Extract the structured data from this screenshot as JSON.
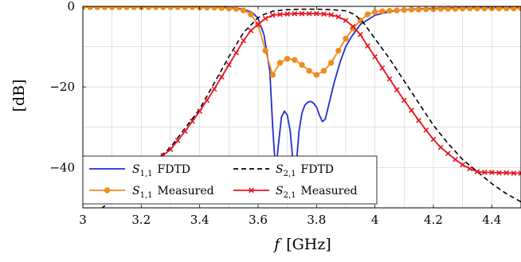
{
  "chart_data": {
    "type": "line",
    "title": "",
    "xlabel": "f",
    "xunit": "[GHz]",
    "ylabel": "[dB]",
    "xlim": [
      3,
      4.5
    ],
    "ylim": [
      -50,
      0
    ],
    "grid": true,
    "legend_position": "bottom-left",
    "xticks": [
      3,
      3.2,
      3.4,
      3.6,
      3.8,
      4,
      4.2,
      4.4
    ],
    "yticks": [
      0,
      -20,
      -40
    ],
    "xtick_labels": [
      "3",
      "3.2",
      "3.4",
      "3.6",
      "3.8",
      "4",
      "4.2",
      "4.4"
    ],
    "ytick_labels": [
      "0",
      "−20",
      "−40"
    ],
    "series": [
      {
        "name": "S_{1,1} FDTD",
        "legend_main": "S",
        "legend_sub": "1,1",
        "legend_rest": "FDTD",
        "color": "#1f2fd6",
        "style": "solid",
        "marker": "none",
        "x": [
          3.0,
          3.2,
          3.4,
          3.5,
          3.55,
          3.58,
          3.6,
          3.62,
          3.64,
          3.65,
          3.66,
          3.67,
          3.68,
          3.69,
          3.7,
          3.71,
          3.72,
          3.725,
          3.73,
          3.74,
          3.75,
          3.76,
          3.77,
          3.78,
          3.79,
          3.8,
          3.81,
          3.82,
          3.83,
          3.84,
          3.86,
          3.88,
          3.9,
          3.92,
          3.95,
          4.0,
          4.05,
          4.1,
          4.2,
          4.3,
          4.5
        ],
        "y": [
          -0.05,
          -0.05,
          -0.1,
          -0.3,
          -0.7,
          -1.5,
          -3,
          -7,
          -16,
          -30,
          -41,
          -34,
          -27.5,
          -26,
          -27,
          -31,
          -39,
          -45,
          -40,
          -31,
          -26.5,
          -24.5,
          -23.8,
          -23.6,
          -24,
          -25,
          -27,
          -28.6,
          -28,
          -25,
          -19,
          -14,
          -10,
          -7.5,
          -4.5,
          -2.2,
          -1.3,
          -0.8,
          -0.5,
          -0.3,
          -0.2
        ]
      },
      {
        "name": "S_{2,1} FDTD",
        "legend_main": "S",
        "legend_sub": "2,1",
        "legend_rest": "FDTD",
        "color": "#000000",
        "style": "dashed",
        "marker": "none",
        "x": [
          3.0,
          3.1,
          3.2,
          3.3,
          3.4,
          3.45,
          3.5,
          3.55,
          3.6,
          3.62,
          3.65,
          3.7,
          3.75,
          3.8,
          3.85,
          3.9,
          3.93,
          3.96,
          4.0,
          4.05,
          4.1,
          4.15,
          4.2,
          4.25,
          4.3,
          4.35,
          4.4,
          4.45,
          4.5
        ],
        "y": [
          -54,
          -48,
          -41.5,
          -35,
          -25.5,
          -19,
          -12.5,
          -6.5,
          -2.8,
          -2,
          -1.2,
          -0.8,
          -0.7,
          -0.7,
          -0.8,
          -1.1,
          -2,
          -4,
          -8,
          -13,
          -18.5,
          -24,
          -29.5,
          -34,
          -38,
          -41,
          -44,
          -46.5,
          -48.5
        ]
      },
      {
        "name": "S_{1,1} Measured",
        "legend_main": "S",
        "legend_sub": "1,1",
        "legend_rest": "Measured",
        "color": "#f08c1e",
        "style": "solid",
        "marker": "circle",
        "x": [
          3.0,
          3.025,
          3.05,
          3.075,
          3.1,
          3.125,
          3.15,
          3.175,
          3.2,
          3.225,
          3.25,
          3.275,
          3.3,
          3.325,
          3.35,
          3.375,
          3.4,
          3.425,
          3.45,
          3.475,
          3.5,
          3.525,
          3.55,
          3.575,
          3.6,
          3.625,
          3.65,
          3.675,
          3.7,
          3.725,
          3.75,
          3.775,
          3.8,
          3.825,
          3.85,
          3.875,
          3.9,
          3.925,
          3.95,
          3.975,
          4.0,
          4.025,
          4.05,
          4.075,
          4.1,
          4.125,
          4.15,
          4.175,
          4.2,
          4.225,
          4.25,
          4.275,
          4.3,
          4.325,
          4.35,
          4.375,
          4.4,
          4.425,
          4.45,
          4.475,
          4.5
        ],
        "y": [
          -0.2,
          -0.2,
          -0.2,
          -0.2,
          -0.2,
          -0.2,
          -0.2,
          -0.2,
          -0.2,
          -0.2,
          -0.2,
          -0.2,
          -0.2,
          -0.2,
          -0.2,
          -0.2,
          -0.3,
          -0.3,
          -0.3,
          -0.4,
          -0.5,
          -0.6,
          -1,
          -2,
          -4.5,
          -11,
          -17,
          -14,
          -13,
          -13.3,
          -14.5,
          -16,
          -17,
          -16,
          -14,
          -11,
          -8,
          -5.5,
          -3.5,
          -2,
          -1.4,
          -1.2,
          -1.1,
          -1,
          -0.9,
          -0.8,
          -0.8,
          -0.7,
          -0.7,
          -0.6,
          -0.6,
          -0.6,
          -0.5,
          -0.5,
          -0.5,
          -0.5,
          -0.5,
          -0.5,
          -0.5,
          -0.5,
          -0.5
        ]
      },
      {
        "name": "S_{2,1} Measured",
        "legend_main": "S",
        "legend_sub": "2,1",
        "legend_rest": "Measured",
        "color": "#e8141e",
        "style": "solid",
        "marker": "x",
        "x": [
          3.0,
          3.025,
          3.05,
          3.075,
          3.1,
          3.125,
          3.15,
          3.175,
          3.2,
          3.225,
          3.25,
          3.275,
          3.3,
          3.325,
          3.35,
          3.375,
          3.4,
          3.425,
          3.45,
          3.475,
          3.5,
          3.525,
          3.55,
          3.575,
          3.6,
          3.625,
          3.65,
          3.675,
          3.7,
          3.725,
          3.75,
          3.775,
          3.8,
          3.825,
          3.85,
          3.875,
          3.9,
          3.925,
          3.95,
          3.975,
          4.0,
          4.025,
          4.05,
          4.075,
          4.1,
          4.125,
          4.15,
          4.175,
          4.2,
          4.225,
          4.25,
          4.275,
          4.3,
          4.325,
          4.35,
          4.375,
          4.4,
          4.425,
          4.45,
          4.475,
          4.5
        ],
        "y": [
          -46.5,
          -46.3,
          -46,
          -45.5,
          -45,
          -44,
          -43,
          -42,
          -41,
          -40,
          -38.5,
          -37,
          -35.5,
          -33.3,
          -31,
          -28.5,
          -26,
          -23.3,
          -20.5,
          -17.5,
          -14.5,
          -11.5,
          -8.5,
          -6,
          -4.5,
          -3,
          -2.2,
          -2,
          -1.9,
          -1.8,
          -1.8,
          -1.8,
          -1.8,
          -1.9,
          -2.1,
          -2.6,
          -3.5,
          -5,
          -7,
          -9.8,
          -12.5,
          -15.3,
          -18,
          -20.7,
          -23.3,
          -25.8,
          -28.3,
          -30.7,
          -33,
          -35,
          -36.5,
          -38,
          -39.3,
          -40.3,
          -41,
          -41.2,
          -41.2,
          -41.3,
          -41.3,
          -41.4,
          -41.4
        ]
      }
    ]
  }
}
